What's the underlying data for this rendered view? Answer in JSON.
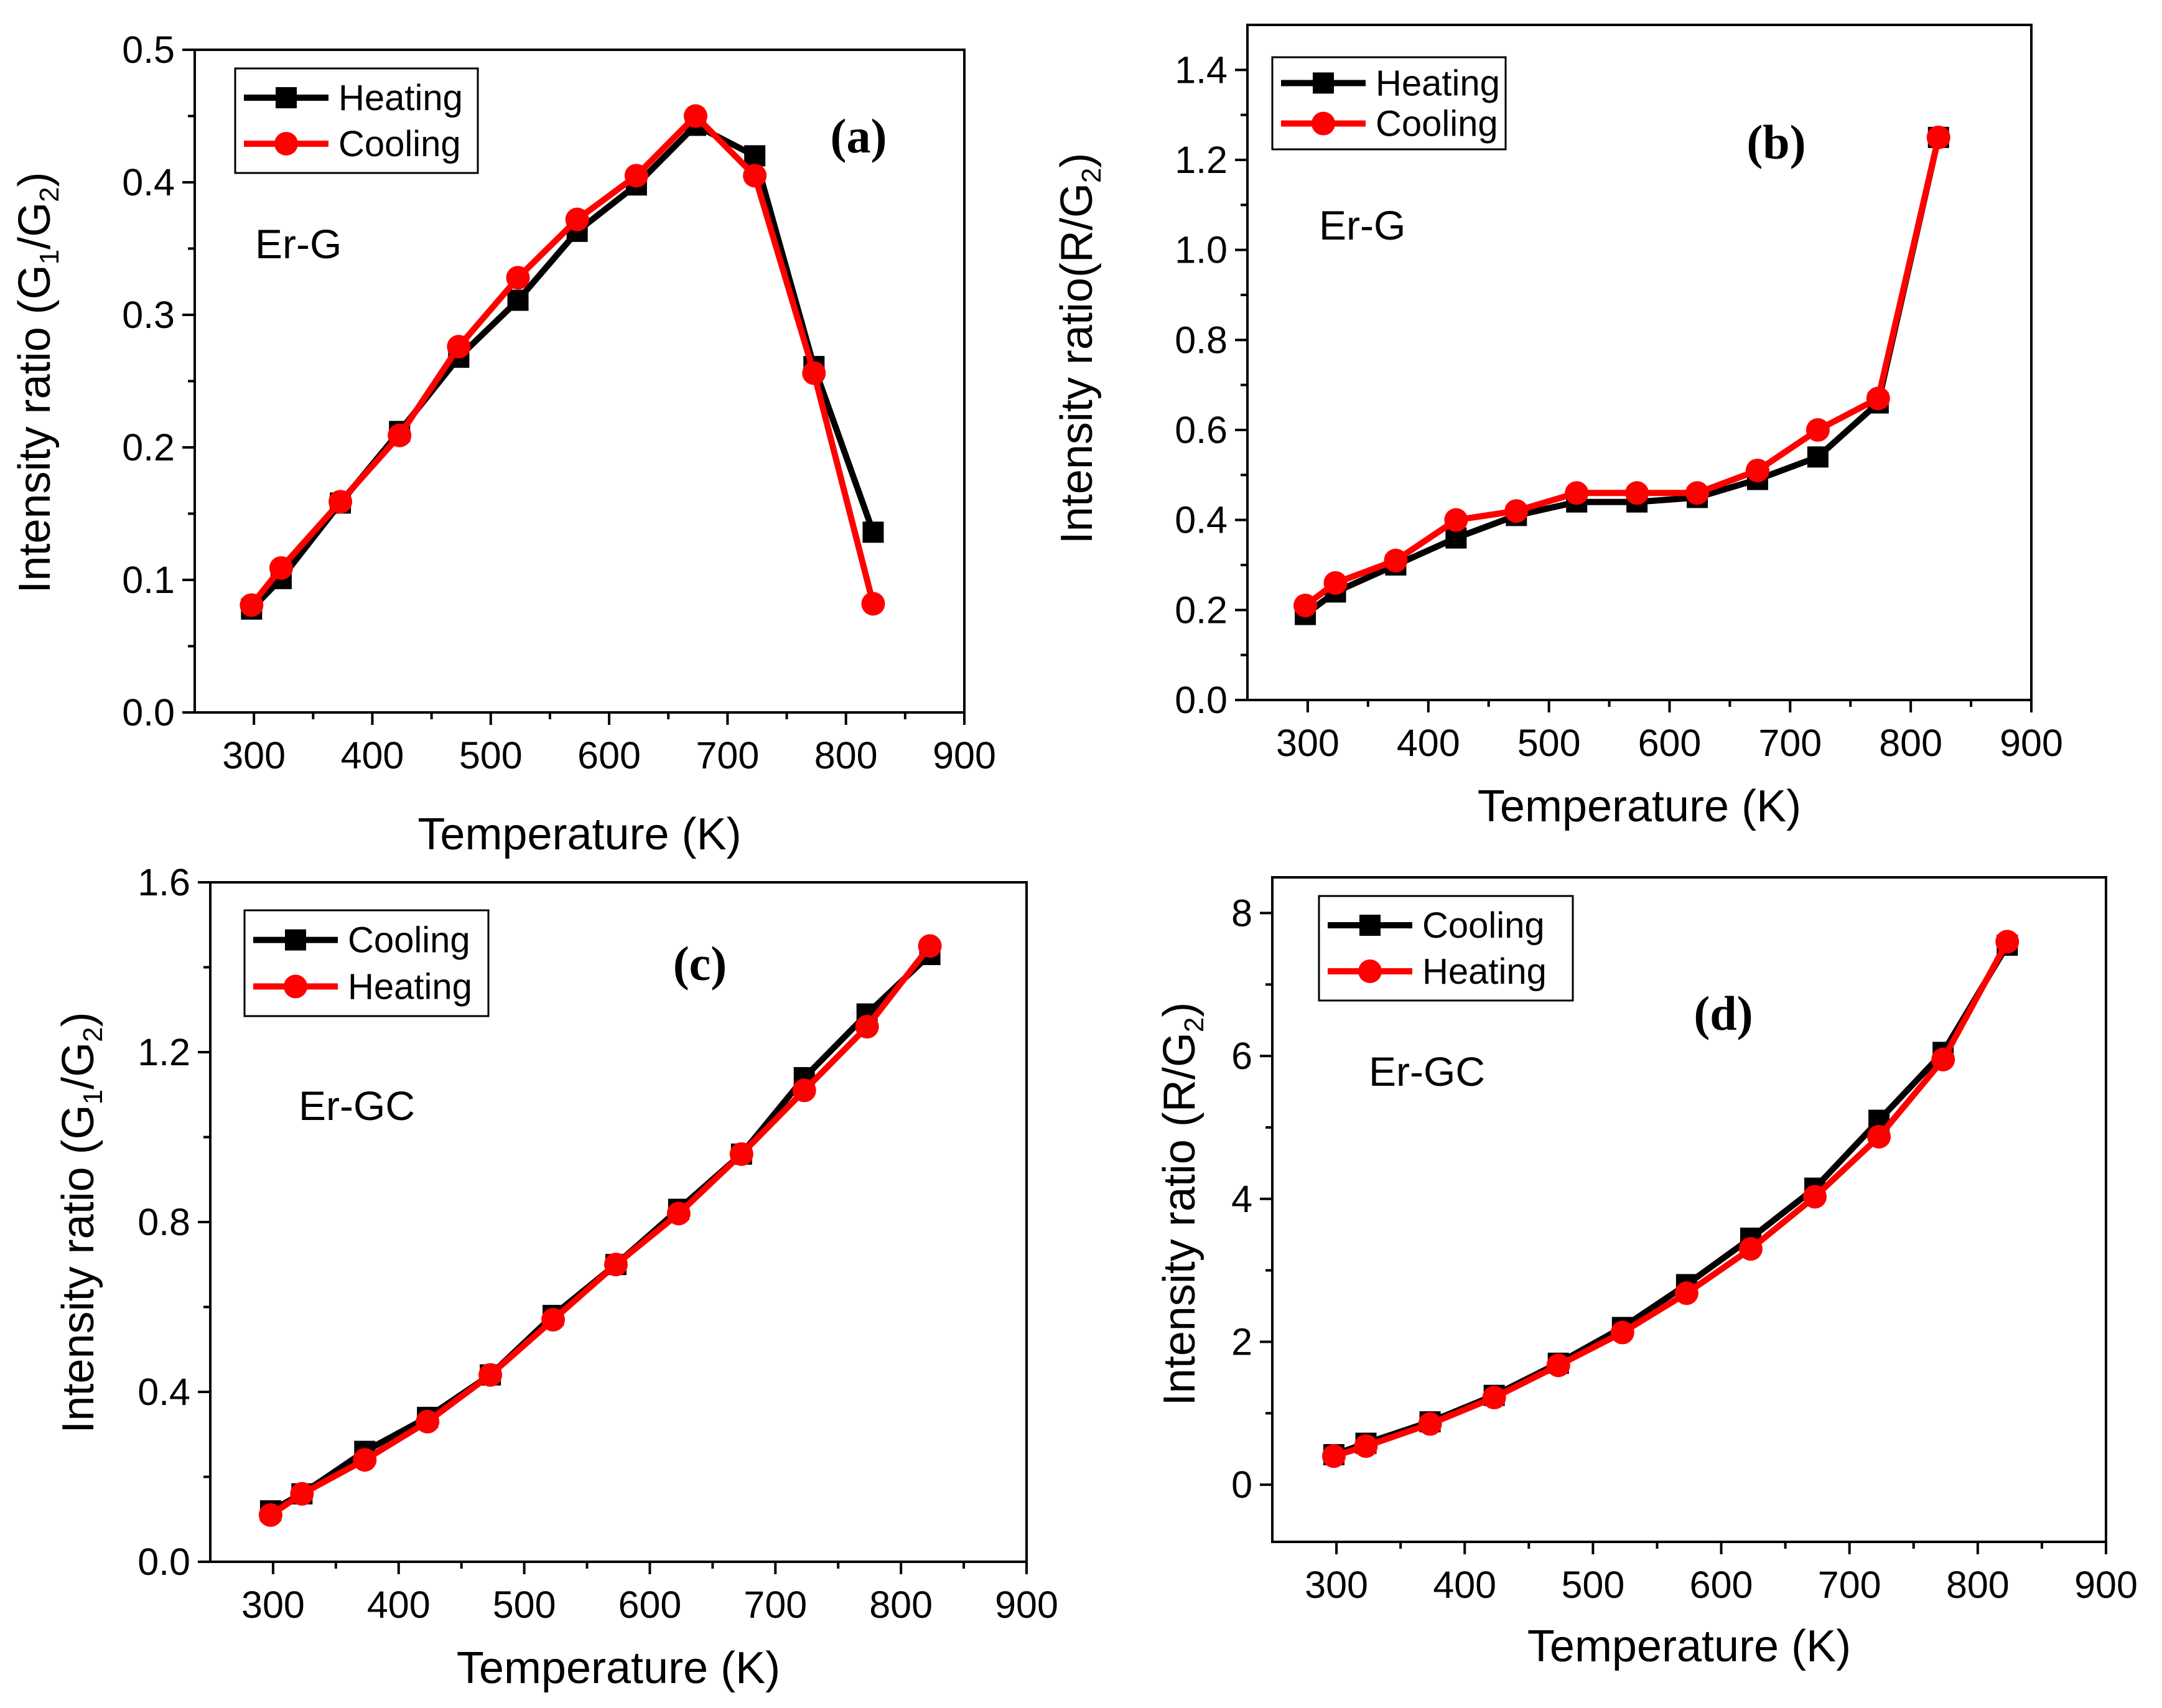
{
  "chart_data": [
    {
      "type": "line",
      "panel_label": "(a)",
      "sample_label": "Er-G",
      "xlabel": "Temperature (K)",
      "ylabel": {
        "prefix": "Intensity ratio (G",
        "sub1": "1",
        "mid": "/G",
        "sub2": "2",
        "suffix": ")"
      },
      "xlim": [
        250,
        900
      ],
      "ylim": [
        0,
        0.5
      ],
      "xticks": [
        "300",
        "400",
        "500",
        "600",
        "700",
        "800",
        "900"
      ],
      "yticks": [
        "0.0",
        "0.1",
        "0.2",
        "0.3",
        "0.4",
        "0.5"
      ],
      "legend_position": "top-left",
      "series": [
        {
          "name": "Heating",
          "color": "#000000",
          "marker": "square",
          "x": [
            298,
            323,
            373,
            423,
            473,
            523,
            573,
            623,
            673,
            723,
            773,
            823
          ],
          "y": [
            0.078,
            0.101,
            0.158,
            0.212,
            0.268,
            0.311,
            0.363,
            0.398,
            0.443,
            0.42,
            0.261,
            0.136
          ]
        },
        {
          "name": "Cooling",
          "color": "#ff0000",
          "marker": "circle",
          "x": [
            298,
            323,
            373,
            423,
            473,
            523,
            573,
            623,
            673,
            723,
            773,
            823
          ],
          "y": [
            0.081,
            0.109,
            0.159,
            0.209,
            0.276,
            0.328,
            0.372,
            0.405,
            0.45,
            0.405,
            0.256,
            0.082
          ]
        }
      ]
    },
    {
      "type": "line",
      "panel_label": "(b)",
      "sample_label": "Er-G",
      "xlabel": "Temperature (K)",
      "ylabel": {
        "prefix": "Intensity ratio(R/G",
        "sub1": "",
        "mid": "",
        "sub2": "2",
        "suffix": ")"
      },
      "xlim": [
        250,
        900
      ],
      "ylim": [
        0,
        1.5
      ],
      "xticks": [
        "300",
        "400",
        "500",
        "600",
        "700",
        "800",
        "900"
      ],
      "yticks": [
        "0.0",
        "0.2",
        "0.4",
        "0.6",
        "0.8",
        "1.0",
        "1.2",
        "1.4"
      ],
      "legend_position": "top-left",
      "series": [
        {
          "name": "Heating",
          "color": "#000000",
          "marker": "square",
          "x": [
            298,
            323,
            373,
            423,
            473,
            523,
            573,
            623,
            673,
            723,
            773,
            823
          ],
          "y": [
            0.19,
            0.24,
            0.3,
            0.36,
            0.41,
            0.44,
            0.44,
            0.45,
            0.49,
            0.54,
            0.66,
            1.25
          ]
        },
        {
          "name": "Cooling",
          "color": "#ff0000",
          "marker": "circle",
          "x": [
            298,
            323,
            373,
            423,
            473,
            523,
            573,
            623,
            673,
            723,
            773,
            823
          ],
          "y": [
            0.21,
            0.26,
            0.31,
            0.4,
            0.42,
            0.46,
            0.46,
            0.46,
            0.51,
            0.6,
            0.67,
            1.25
          ]
        }
      ]
    },
    {
      "type": "line",
      "panel_label": "(c)",
      "sample_label": "Er-GC",
      "xlabel": "Temperature (K)",
      "ylabel": {
        "prefix": "Intensity ratio (G",
        "sub1": "1",
        "mid": "/G",
        "sub2": "2",
        "suffix": ")"
      },
      "xlim": [
        250,
        900
      ],
      "ylim": [
        0,
        1.6
      ],
      "xticks": [
        "300",
        "400",
        "500",
        "600",
        "700",
        "800",
        "900"
      ],
      "yticks": [
        "0.0",
        "0.4",
        "0.8",
        "1.2",
        "1.6"
      ],
      "legend_position": "top-left",
      "series": [
        {
          "name": "Cooling",
          "color": "#000000",
          "marker": "square",
          "x": [
            298,
            323,
            373,
            423,
            473,
            523,
            573,
            623,
            673,
            723,
            773,
            823
          ],
          "y": [
            0.12,
            0.16,
            0.26,
            0.34,
            0.44,
            0.58,
            0.7,
            0.83,
            0.96,
            1.14,
            1.29,
            1.43
          ]
        },
        {
          "name": "Heating",
          "color": "#ff0000",
          "marker": "circle",
          "x": [
            298,
            323,
            373,
            423,
            473,
            523,
            573,
            623,
            673,
            723,
            773,
            823
          ],
          "y": [
            0.11,
            0.16,
            0.24,
            0.33,
            0.44,
            0.57,
            0.7,
            0.82,
            0.96,
            1.11,
            1.26,
            1.45
          ]
        }
      ]
    },
    {
      "type": "line",
      "panel_label": "(d)",
      "sample_label": "Er-GC",
      "xlabel": "Temperature (K)",
      "ylabel": {
        "prefix": "Intensity ratio (R/G",
        "sub1": "",
        "mid": "",
        "sub2": "2",
        "suffix": ")"
      },
      "xlim": [
        250,
        900
      ],
      "ylim": [
        -0.8,
        8.5
      ],
      "xticks": [
        "300",
        "400",
        "500",
        "600",
        "700",
        "800",
        "900"
      ],
      "yticks": [
        "0",
        "2",
        "4",
        "6",
        "8"
      ],
      "legend_position": "top-left",
      "series": [
        {
          "name": "Cooling",
          "color": "#000000",
          "marker": "square",
          "x": [
            298,
            323,
            373,
            423,
            473,
            523,
            573,
            623,
            673,
            723,
            773,
            823
          ],
          "y": [
            0.42,
            0.58,
            0.88,
            1.25,
            1.7,
            2.2,
            2.8,
            3.45,
            4.15,
            5.1,
            6.05,
            7.55
          ]
        },
        {
          "name": "Heating",
          "color": "#ff0000",
          "marker": "circle",
          "x": [
            298,
            323,
            373,
            423,
            473,
            523,
            573,
            623,
            673,
            723,
            773,
            823
          ],
          "y": [
            0.4,
            0.54,
            0.85,
            1.22,
            1.67,
            2.13,
            2.68,
            3.3,
            4.03,
            4.87,
            5.95,
            7.6
          ]
        }
      ]
    }
  ]
}
